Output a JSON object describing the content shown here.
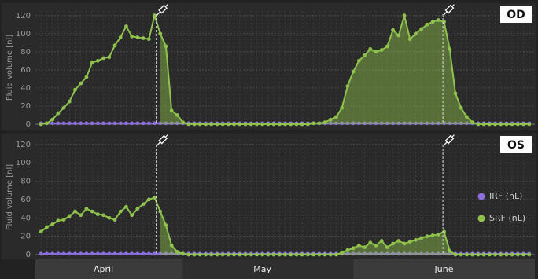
{
  "chart_data": [
    {
      "type": "line",
      "title": "OD",
      "ylabel": "Fluid volume [nl]",
      "x": [
        1,
        2,
        3,
        4,
        5,
        6,
        7,
        8,
        9,
        10,
        11,
        12,
        13,
        14,
        15,
        16,
        17,
        18,
        19,
        20,
        21,
        22,
        23,
        24,
        25,
        26,
        27,
        28,
        29,
        30,
        31,
        32,
        33,
        34,
        35,
        36,
        37,
        38,
        39,
        40,
        41,
        42,
        43,
        44,
        45,
        46,
        47,
        48,
        49,
        50,
        51,
        52,
        53,
        54,
        55,
        56,
        57,
        58,
        59,
        60,
        61,
        62,
        63,
        64,
        65,
        66,
        67,
        68,
        69,
        70,
        71,
        72,
        73,
        74,
        75,
        76,
        77,
        78,
        79,
        80,
        81,
        82,
        83,
        84,
        85,
        86,
        87
      ],
      "series": [
        {
          "name": "IRF (nL)",
          "color": "#8b6fdc",
          "values": [
            1,
            1,
            1,
            1,
            1,
            1,
            1,
            1,
            1,
            1,
            1,
            1,
            1,
            1,
            1,
            1,
            1,
            1,
            1,
            1,
            1,
            1,
            1,
            1,
            1,
            1,
            1,
            1,
            1,
            1,
            1,
            1,
            1,
            1,
            1,
            1,
            1,
            1,
            1,
            1,
            1,
            1,
            1,
            1,
            1,
            1,
            1,
            1,
            1,
            1,
            1,
            1,
            1,
            1,
            1,
            1,
            1,
            1,
            1,
            1,
            1,
            1,
            1,
            1,
            1,
            1,
            1,
            1,
            1,
            1,
            1,
            1,
            1,
            1,
            1,
            1,
            1,
            1,
            1,
            1,
            1,
            1,
            1,
            1,
            1,
            1,
            1
          ]
        },
        {
          "name": "SRF (nL)",
          "color": "#8fc24c",
          "values": [
            0,
            1,
            5,
            12,
            18,
            25,
            38,
            45,
            52,
            68,
            70,
            73,
            74,
            87,
            96,
            108,
            97,
            96,
            95,
            94,
            120,
            100,
            86,
            15,
            10,
            2,
            0,
            0,
            0,
            0,
            0,
            0,
            0,
            0,
            0,
            0,
            0,
            0,
            0,
            0,
            0,
            0,
            0,
            0,
            0,
            0,
            0,
            0,
            1,
            1,
            2,
            5,
            8,
            18,
            42,
            58,
            70,
            76,
            83,
            80,
            82,
            86,
            104,
            98,
            120,
            94,
            100,
            105,
            110,
            113,
            115,
            113,
            83,
            34,
            18,
            8,
            2,
            0,
            0,
            0,
            0,
            0,
            0,
            0,
            0,
            0,
            0
          ]
        }
      ],
      "xlim": [
        0,
        88
      ],
      "ylim": [
        0,
        125
      ],
      "yticks": [
        0,
        20,
        40,
        60,
        80,
        100,
        120
      ],
      "injections": [
        21.3,
        71.8
      ],
      "grid": true
    },
    {
      "type": "line",
      "title": "OS",
      "ylabel": "Fluid volume [nl]",
      "x": [
        1,
        2,
        3,
        4,
        5,
        6,
        7,
        8,
        9,
        10,
        11,
        12,
        13,
        14,
        15,
        16,
        17,
        18,
        19,
        20,
        21,
        22,
        23,
        24,
        25,
        26,
        27,
        28,
        29,
        30,
        31,
        32,
        33,
        34,
        35,
        36,
        37,
        38,
        39,
        40,
        41,
        42,
        43,
        44,
        45,
        46,
        47,
        48,
        49,
        50,
        51,
        52,
        53,
        54,
        55,
        56,
        57,
        58,
        59,
        60,
        61,
        62,
        63,
        64,
        65,
        66,
        67,
        68,
        69,
        70,
        71,
        72,
        73,
        74,
        75,
        76,
        77,
        78,
        79,
        80,
        81,
        82,
        83,
        84,
        85,
        86,
        87
      ],
      "series": [
        {
          "name": "IRF (nL)",
          "color": "#8b6fdc",
          "values": [
            1,
            1,
            1,
            1,
            1,
            1,
            1,
            1,
            1,
            1,
            1,
            1,
            1,
            1,
            1,
            1,
            1,
            1,
            1,
            1,
            1,
            1,
            1,
            1,
            1,
            1,
            1,
            1,
            1,
            1,
            1,
            1,
            1,
            1,
            1,
            1,
            1,
            1,
            1,
            1,
            1,
            1,
            1,
            1,
            1,
            1,
            1,
            1,
            1,
            1,
            1,
            1,
            1,
            1,
            1,
            1,
            1,
            1,
            1,
            1,
            1,
            1,
            1,
            1,
            1,
            1,
            1,
            1,
            1,
            1,
            1,
            1,
            1,
            1,
            1,
            1,
            1,
            1,
            1,
            1,
            1,
            1,
            1,
            1,
            1,
            1,
            1
          ]
        },
        {
          "name": "SRF (nL)",
          "color": "#8fc24c",
          "values": [
            25,
            30,
            33,
            37,
            38,
            42,
            47,
            43,
            50,
            47,
            44,
            43,
            40,
            38,
            47,
            52,
            43,
            50,
            55,
            60,
            62,
            47,
            32,
            10,
            3,
            1,
            0,
            0,
            0,
            0,
            0,
            0,
            0,
            0,
            0,
            0,
            0,
            0,
            0,
            0,
            0,
            0,
            0,
            0,
            0,
            0,
            0,
            0,
            0,
            0,
            0,
            0,
            0,
            2,
            5,
            7,
            10,
            8,
            13,
            10,
            15,
            8,
            12,
            15,
            12,
            14,
            16,
            18,
            20,
            21,
            22,
            25,
            4,
            0,
            0,
            0,
            0,
            0,
            0,
            0,
            0,
            0,
            0,
            0,
            0,
            0,
            0
          ]
        }
      ],
      "xlim": [
        0,
        88
      ],
      "ylim": [
        0,
        125
      ],
      "yticks": [
        0,
        20,
        40,
        60,
        80,
        100,
        120
      ],
      "xticks": [
        {
          "value": 12,
          "label": "April"
        },
        {
          "value": 40,
          "label": "May"
        },
        {
          "value": 72,
          "label": "June"
        }
      ],
      "injections": [
        21.3,
        71.8
      ],
      "grid": true,
      "legend": "right"
    }
  ]
}
